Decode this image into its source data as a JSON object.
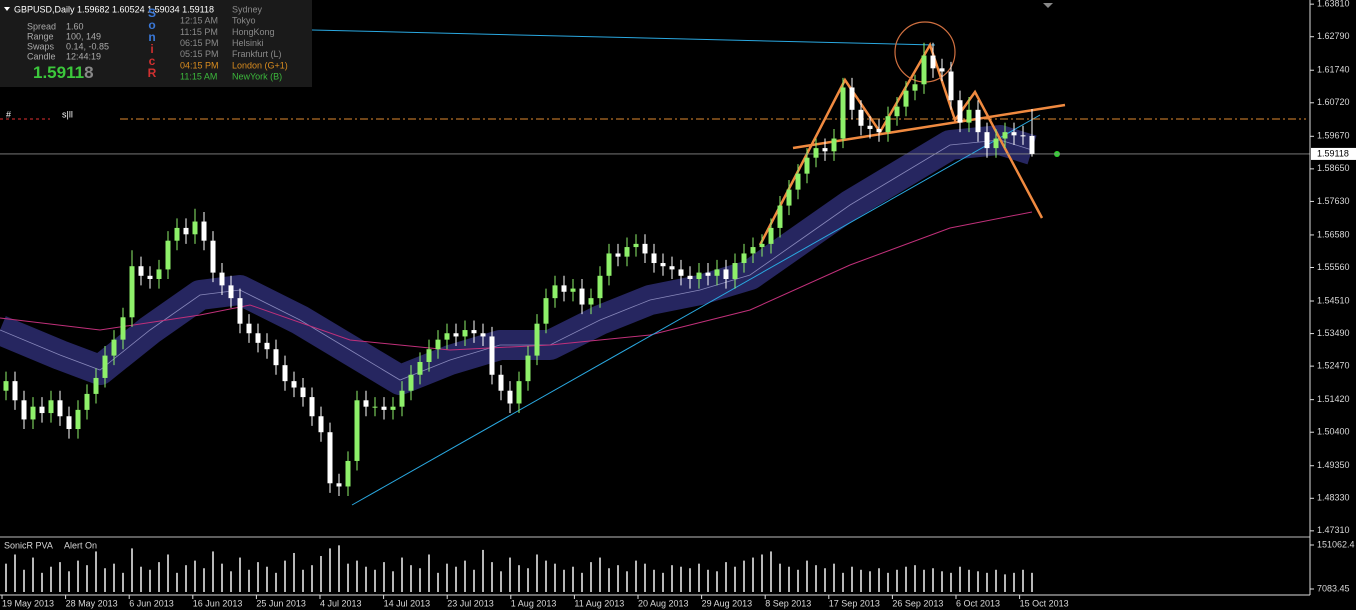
{
  "header": {
    "symbol_line": "GBPUSD,Daily  1.59682 1.60524 1.59034 1.59118",
    "stats": [
      {
        "label": "Spread",
        "value": "1.60"
      },
      {
        "label": "Range",
        "value": "100, 149"
      },
      {
        "label": "Swaps",
        "value": "0.14, -0.85"
      },
      {
        "label": "Candle",
        "value": "12:44:19"
      }
    ],
    "price_main": "1.5911",
    "price_last_digit": "8",
    "brand_letters": [
      {
        "text": "S",
        "color": "#3a78d8"
      },
      {
        "text": "o",
        "color": "#3a78d8"
      },
      {
        "text": "n",
        "color": "#3a78d8"
      },
      {
        "text": "i",
        "color": "#d03030"
      },
      {
        "text": "c",
        "color": "#d03030"
      },
      {
        "text": "R",
        "color": "#d03030"
      }
    ],
    "sessions": [
      {
        "name": "Sydney",
        "color": "#8a8a8a"
      },
      {
        "time": "12:15 AM",
        "name": "Tokyo",
        "color": "#8a8a8a"
      },
      {
        "time": "11:15 PM",
        "name": "HongKong",
        "color": "#8a8a8a"
      },
      {
        "time": "06:15 PM",
        "name": "Helsinki",
        "color": "#8a8a8a"
      },
      {
        "time": "05:15 PM",
        "name": "Frankfurt (L)",
        "color": "#8a8a8a"
      },
      {
        "time": "04:15 PM",
        "name": "London (G+1)",
        "color": "#d98c1f"
      },
      {
        "time": "11:15 AM",
        "name": "NewYork (B)",
        "color": "#3cb83c"
      }
    ]
  },
  "markers": [
    "#",
    "s|ll"
  ],
  "chart_data": [
    {
      "type": "candlestick",
      "up_color": "#8ef06a",
      "down_color": "#ffffff",
      "ohlc": [
        [
          1.517,
          1.523,
          1.514,
          1.52
        ],
        [
          1.52,
          1.523,
          1.511,
          1.514
        ],
        [
          1.514,
          1.517,
          1.505,
          1.508
        ],
        [
          1.508,
          1.515,
          1.505,
          1.512
        ],
        [
          1.512,
          1.515,
          1.507,
          1.51
        ],
        [
          1.51,
          1.517,
          1.507,
          1.514
        ],
        [
          1.514,
          1.517,
          1.506,
          1.509
        ],
        [
          1.509,
          1.512,
          1.502,
          1.505
        ],
        [
          1.505,
          1.514,
          1.502,
          1.511
        ],
        [
          1.511,
          1.519,
          1.508,
          1.516
        ],
        [
          1.516,
          1.524,
          1.513,
          1.521
        ],
        [
          1.521,
          1.531,
          1.518,
          1.528
        ],
        [
          1.528,
          1.536,
          1.525,
          1.533
        ],
        [
          1.533,
          1.543,
          1.53,
          1.54
        ],
        [
          1.54,
          1.561,
          1.537,
          1.556
        ],
        [
          1.556,
          1.559,
          1.55,
          1.553
        ],
        [
          1.553,
          1.556,
          1.549,
          1.552
        ],
        [
          1.552,
          1.558,
          1.549,
          1.555
        ],
        [
          1.555,
          1.567,
          1.552,
          1.564
        ],
        [
          1.564,
          1.571,
          1.561,
          1.568
        ],
        [
          1.568,
          1.571,
          1.563,
          1.566
        ],
        [
          1.566,
          1.574,
          1.563,
          1.57
        ],
        [
          1.57,
          1.573,
          1.561,
          1.564
        ],
        [
          1.564,
          1.567,
          1.551,
          1.554
        ],
        [
          1.554,
          1.557,
          1.547,
          1.55
        ],
        [
          1.55,
          1.553,
          1.543,
          1.546
        ],
        [
          1.546,
          1.549,
          1.535,
          1.538
        ],
        [
          1.538,
          1.541,
          1.532,
          1.535
        ],
        [
          1.535,
          1.538,
          1.529,
          1.532
        ],
        [
          1.532,
          1.535,
          1.527,
          1.53
        ],
        [
          1.53,
          1.533,
          1.522,
          1.525
        ],
        [
          1.525,
          1.528,
          1.517,
          1.52
        ],
        [
          1.52,
          1.523,
          1.515,
          1.518
        ],
        [
          1.518,
          1.521,
          1.512,
          1.515
        ],
        [
          1.515,
          1.518,
          1.506,
          1.509
        ],
        [
          1.509,
          1.512,
          1.501,
          1.504
        ],
        [
          1.504,
          1.507,
          1.485,
          1.488
        ],
        [
          1.488,
          1.491,
          1.484,
          1.487
        ],
        [
          1.487,
          1.498,
          1.484,
          1.495
        ],
        [
          1.495,
          1.517,
          1.492,
          1.514
        ],
        [
          1.514,
          1.517,
          1.509,
          1.512
        ],
        [
          1.512,
          1.515,
          1.509,
          1.512
        ],
        [
          1.512,
          1.515,
          1.508,
          1.511
        ],
        [
          1.511,
          1.515,
          1.508,
          1.512
        ],
        [
          1.512,
          1.52,
          1.509,
          1.517
        ],
        [
          1.517,
          1.525,
          1.514,
          1.522
        ],
        [
          1.522,
          1.529,
          1.519,
          1.526
        ],
        [
          1.526,
          1.533,
          1.523,
          1.53
        ],
        [
          1.53,
          1.536,
          1.527,
          1.533
        ],
        [
          1.533,
          1.538,
          1.53,
          1.535
        ],
        [
          1.535,
          1.538,
          1.531,
          1.534
        ],
        [
          1.534,
          1.539,
          1.531,
          1.536
        ],
        [
          1.536,
          1.539,
          1.532,
          1.535
        ],
        [
          1.535,
          1.538,
          1.531,
          1.534
        ],
        [
          1.534,
          1.537,
          1.519,
          1.522
        ],
        [
          1.522,
          1.525,
          1.514,
          1.517
        ],
        [
          1.517,
          1.52,
          1.51,
          1.513
        ],
        [
          1.513,
          1.523,
          1.51,
          1.52
        ],
        [
          1.52,
          1.531,
          1.517,
          1.528
        ],
        [
          1.528,
          1.541,
          1.525,
          1.538
        ],
        [
          1.538,
          1.549,
          1.535,
          1.546
        ],
        [
          1.546,
          1.553,
          1.543,
          1.55
        ],
        [
          1.55,
          1.553,
          1.545,
          1.548
        ],
        [
          1.548,
          1.552,
          1.545,
          1.549
        ],
        [
          1.549,
          1.552,
          1.541,
          1.544
        ],
        [
          1.544,
          1.549,
          1.541,
          1.546
        ],
        [
          1.546,
          1.556,
          1.543,
          1.553
        ],
        [
          1.553,
          1.563,
          1.55,
          1.56
        ],
        [
          1.56,
          1.563,
          1.556,
          1.559
        ],
        [
          1.559,
          1.565,
          1.556,
          1.562
        ],
        [
          1.562,
          1.566,
          1.559,
          1.563
        ],
        [
          1.563,
          1.566,
          1.557,
          1.56
        ],
        [
          1.56,
          1.563,
          1.554,
          1.557
        ],
        [
          1.557,
          1.56,
          1.553,
          1.556
        ],
        [
          1.556,
          1.559,
          1.552,
          1.555
        ],
        [
          1.555,
          1.558,
          1.55,
          1.553
        ],
        [
          1.553,
          1.556,
          1.549,
          1.552
        ],
        [
          1.552,
          1.557,
          1.549,
          1.554
        ],
        [
          1.554,
          1.557,
          1.55,
          1.553
        ],
        [
          1.553,
          1.558,
          1.55,
          1.555
        ],
        [
          1.555,
          1.558,
          1.549,
          1.552
        ],
        [
          1.552,
          1.56,
          1.549,
          1.557
        ],
        [
          1.557,
          1.563,
          1.554,
          1.56
        ],
        [
          1.56,
          1.565,
          1.557,
          1.562
        ],
        [
          1.562,
          1.566,
          1.559,
          1.563
        ],
        [
          1.563,
          1.571,
          1.56,
          1.568
        ],
        [
          1.568,
          1.578,
          1.565,
          1.575
        ],
        [
          1.575,
          1.583,
          1.572,
          1.58
        ],
        [
          1.58,
          1.588,
          1.577,
          1.585
        ],
        [
          1.585,
          1.593,
          1.582,
          1.59
        ],
        [
          1.59,
          1.596,
          1.587,
          1.593
        ],
        [
          1.593,
          1.596,
          1.589,
          1.592
        ],
        [
          1.592,
          1.599,
          1.589,
          1.596
        ],
        [
          1.596,
          1.615,
          1.593,
          1.612
        ],
        [
          1.612,
          1.615,
          1.602,
          1.605
        ],
        [
          1.605,
          1.608,
          1.597,
          1.6
        ],
        [
          1.6,
          1.603,
          1.596,
          1.599
        ],
        [
          1.599,
          1.602,
          1.595,
          1.598
        ],
        [
          1.598,
          1.606,
          1.595,
          1.603
        ],
        [
          1.603,
          1.609,
          1.6,
          1.606
        ],
        [
          1.606,
          1.614,
          1.603,
          1.611
        ],
        [
          1.611,
          1.616,
          1.608,
          1.613
        ],
        [
          1.613,
          1.626,
          1.61,
          1.622
        ],
        [
          1.622,
          1.626,
          1.615,
          1.618
        ],
        [
          1.618,
          1.621,
          1.614,
          1.617
        ],
        [
          1.617,
          1.62,
          1.605,
          1.608
        ],
        [
          1.608,
          1.611,
          1.598,
          1.601
        ],
        [
          1.601,
          1.609,
          1.598,
          1.605
        ],
        [
          1.605,
          1.608,
          1.595,
          1.598
        ],
        [
          1.598,
          1.601,
          1.59,
          1.593
        ],
        [
          1.593,
          1.599,
          1.59,
          1.596
        ],
        [
          1.596,
          1.601,
          1.593,
          1.598
        ],
        [
          1.598,
          1.601,
          1.594,
          1.597
        ],
        [
          1.597,
          1.6,
          1.594,
          1.5968
        ],
        [
          1.59682,
          1.60524,
          1.59034,
          1.59118
        ]
      ],
      "ylim": [
        1.4718,
        1.6394
      ],
      "yticks": [
        {
          "value": 1.6381,
          "label": "1.63810"
        },
        {
          "value": 1.6279,
          "label": "1.62790"
        },
        {
          "value": 1.6174,
          "label": "1.61740"
        },
        {
          "value": 1.6072,
          "label": "1.60720"
        },
        {
          "value": 1.5967,
          "label": "1.59670"
        },
        {
          "value": 1.5865,
          "label": "1.58650"
        },
        {
          "value": 1.5763,
          "label": "1.57630"
        },
        {
          "value": 1.5658,
          "label": "1.56580"
        },
        {
          "value": 1.5556,
          "label": "1.55560"
        },
        {
          "value": 1.5451,
          "label": "1.54510"
        },
        {
          "value": 1.5349,
          "label": "1.53490"
        },
        {
          "value": 1.5247,
          "label": "1.52470"
        },
        {
          "value": 1.5142,
          "label": "1.51420"
        },
        {
          "value": 1.504,
          "label": "1.50400"
        },
        {
          "value": 1.4935,
          "label": "1.49350"
        },
        {
          "value": 1.4833,
          "label": "1.48330"
        },
        {
          "value": 1.4731,
          "label": "1.47310"
        }
      ],
      "current_price": {
        "value": 1.59118,
        "label": "1.59118"
      },
      "x_labels": [
        "19 May 2013",
        "28 May 2013",
        "6 Jun 2013",
        "16 Jun 2013",
        "25 Jun 2013",
        "4 Jul 2013",
        "14 Jul 2013",
        "23 Jul 2013",
        "1 Aug 2013",
        "11 Aug 2013",
        "20 Aug 2013",
        "29 Aug 2013",
        "8 Sep 2013",
        "17 Sep 2013",
        "26 Sep 2013",
        "6 Oct 2013",
        "15 Oct 2013"
      ]
    },
    {
      "type": "volume",
      "title": "SonicR PVA",
      "alert": "Alert On",
      "color": "#b8b8b8",
      "values": [
        90000,
        120000,
        70000,
        110000,
        60000,
        80000,
        95000,
        65000,
        100000,
        85000,
        130000,
        75000,
        90000,
        60000,
        140000,
        80000,
        70000,
        95000,
        120000,
        60000,
        85000,
        100000,
        75000,
        130000,
        90000,
        65000,
        110000,
        70000,
        95000,
        80000,
        60000,
        100000,
        125000,
        70000,
        85000,
        115000,
        140000,
        150000,
        90000,
        100000,
        80000,
        70000,
        95000,
        65000,
        110000,
        85000,
        75000,
        120000,
        60000,
        90000,
        80000,
        100000,
        70000,
        135000,
        95000,
        65000,
        110000,
        85000,
        75000,
        120000,
        100000,
        90000,
        70000,
        80000,
        60000,
        95000,
        110000,
        75000,
        85000,
        65000,
        100000,
        90000,
        70000,
        60000,
        85000,
        80000,
        75000,
        90000,
        70000,
        65000,
        95000,
        80000,
        100000,
        110000,
        120000,
        130000,
        90000,
        80000,
        70000,
        100000,
        85000,
        75000,
        90000,
        60000,
        80000,
        70000,
        65000,
        75000,
        60000,
        70000,
        80000,
        85000,
        70000,
        75000,
        65000,
        60000,
        80000,
        70000,
        65000,
        60000,
        70000,
        55000,
        60000,
        70000,
        60000
      ],
      "ylim": [
        7083.45,
        151062.4
      ],
      "yticks": [
        151062.4,
        7083.45
      ]
    }
  ]
}
